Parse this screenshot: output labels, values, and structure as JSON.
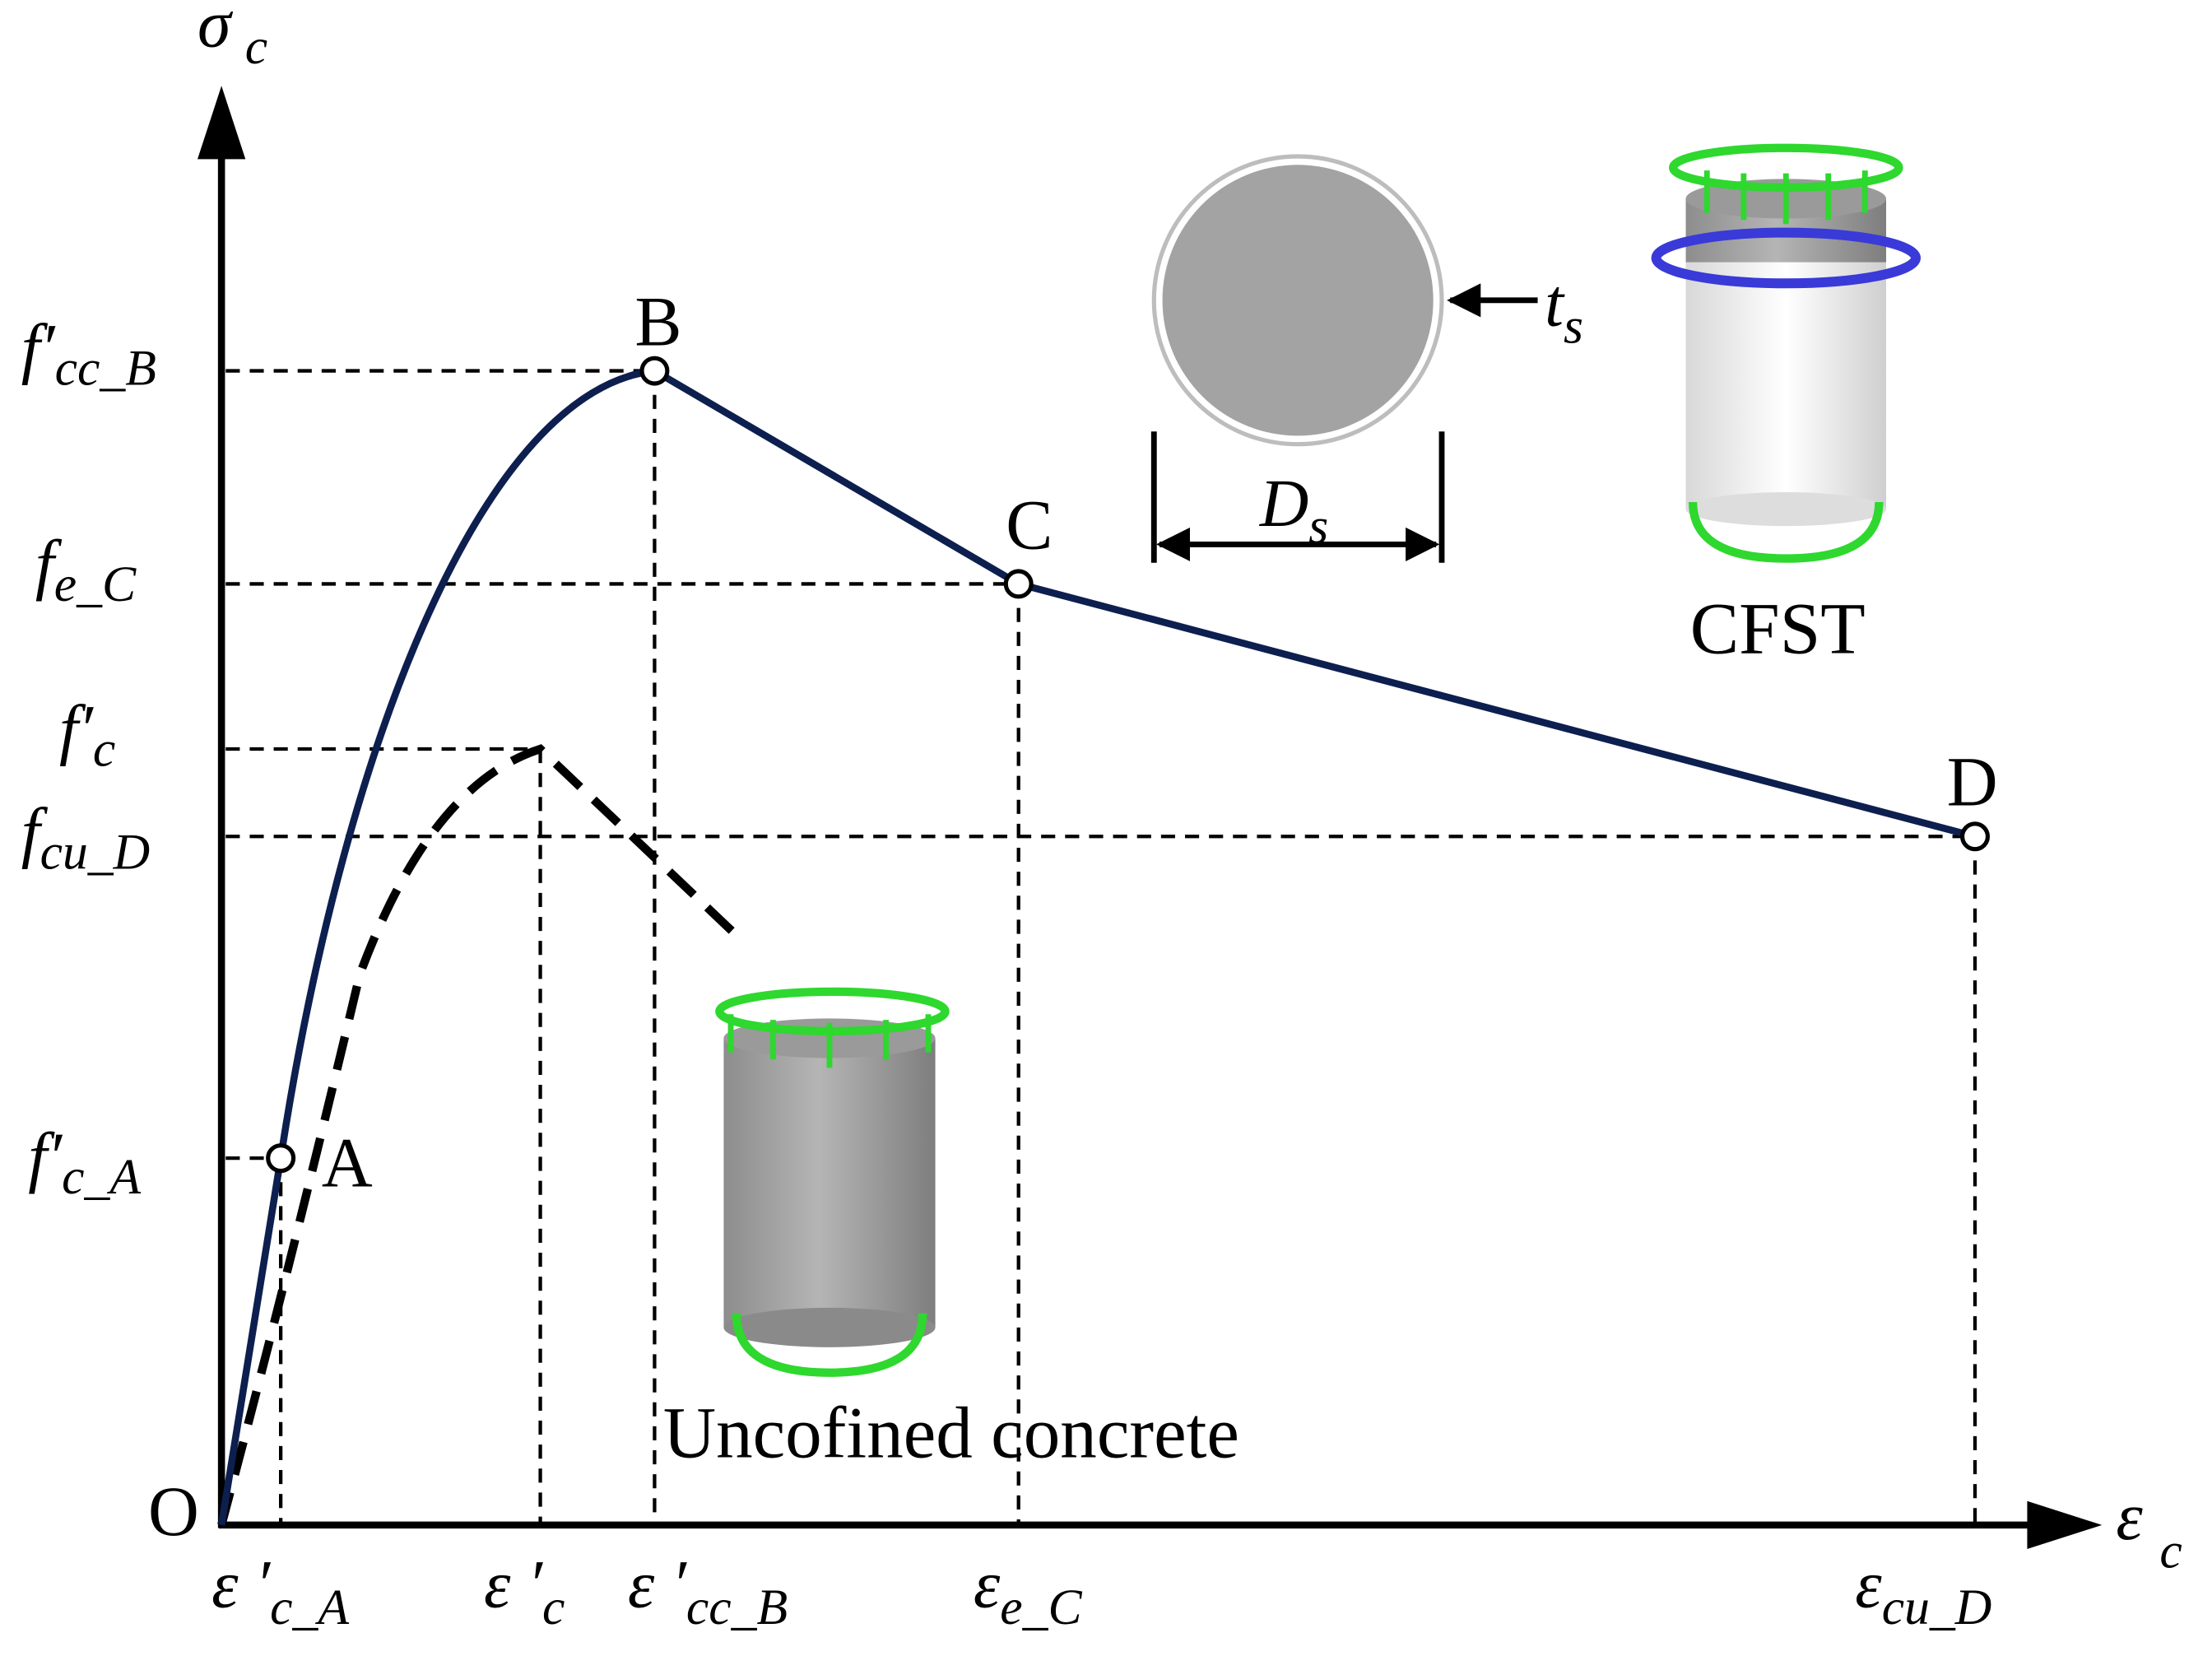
{
  "axes": {
    "y": {
      "main": "σ",
      "sub": "c"
    },
    "x": {
      "main": "ε",
      "sub": "c"
    }
  },
  "points": [
    "O",
    "A",
    "B",
    "C",
    "D"
  ],
  "y_labels": [
    {
      "main": "f′",
      "sub": "cc_B"
    },
    {
      "main": "f",
      "sub": "e_C"
    },
    {
      "main": "f′",
      "sub": "c"
    },
    {
      "main": "f",
      "sub": "cu_D"
    },
    {
      "main": "f′",
      "sub": "c_A"
    }
  ],
  "x_labels": [
    {
      "main": "ε ′",
      "sub": "c_A"
    },
    {
      "main": "ε ′",
      "sub": "c"
    },
    {
      "main": "ε ′",
      "sub": "cc_B"
    },
    {
      "main": "ε",
      "sub": "e_C"
    },
    {
      "main": "ε",
      "sub": "cu_D"
    }
  ],
  "dimensions": {
    "diameter": {
      "main": "D",
      "sub": "s"
    },
    "thickness": {
      "main": "t",
      "sub": "s"
    }
  },
  "captions": {
    "confined": "CFST",
    "unconfined": "Uncofined concrete"
  }
}
